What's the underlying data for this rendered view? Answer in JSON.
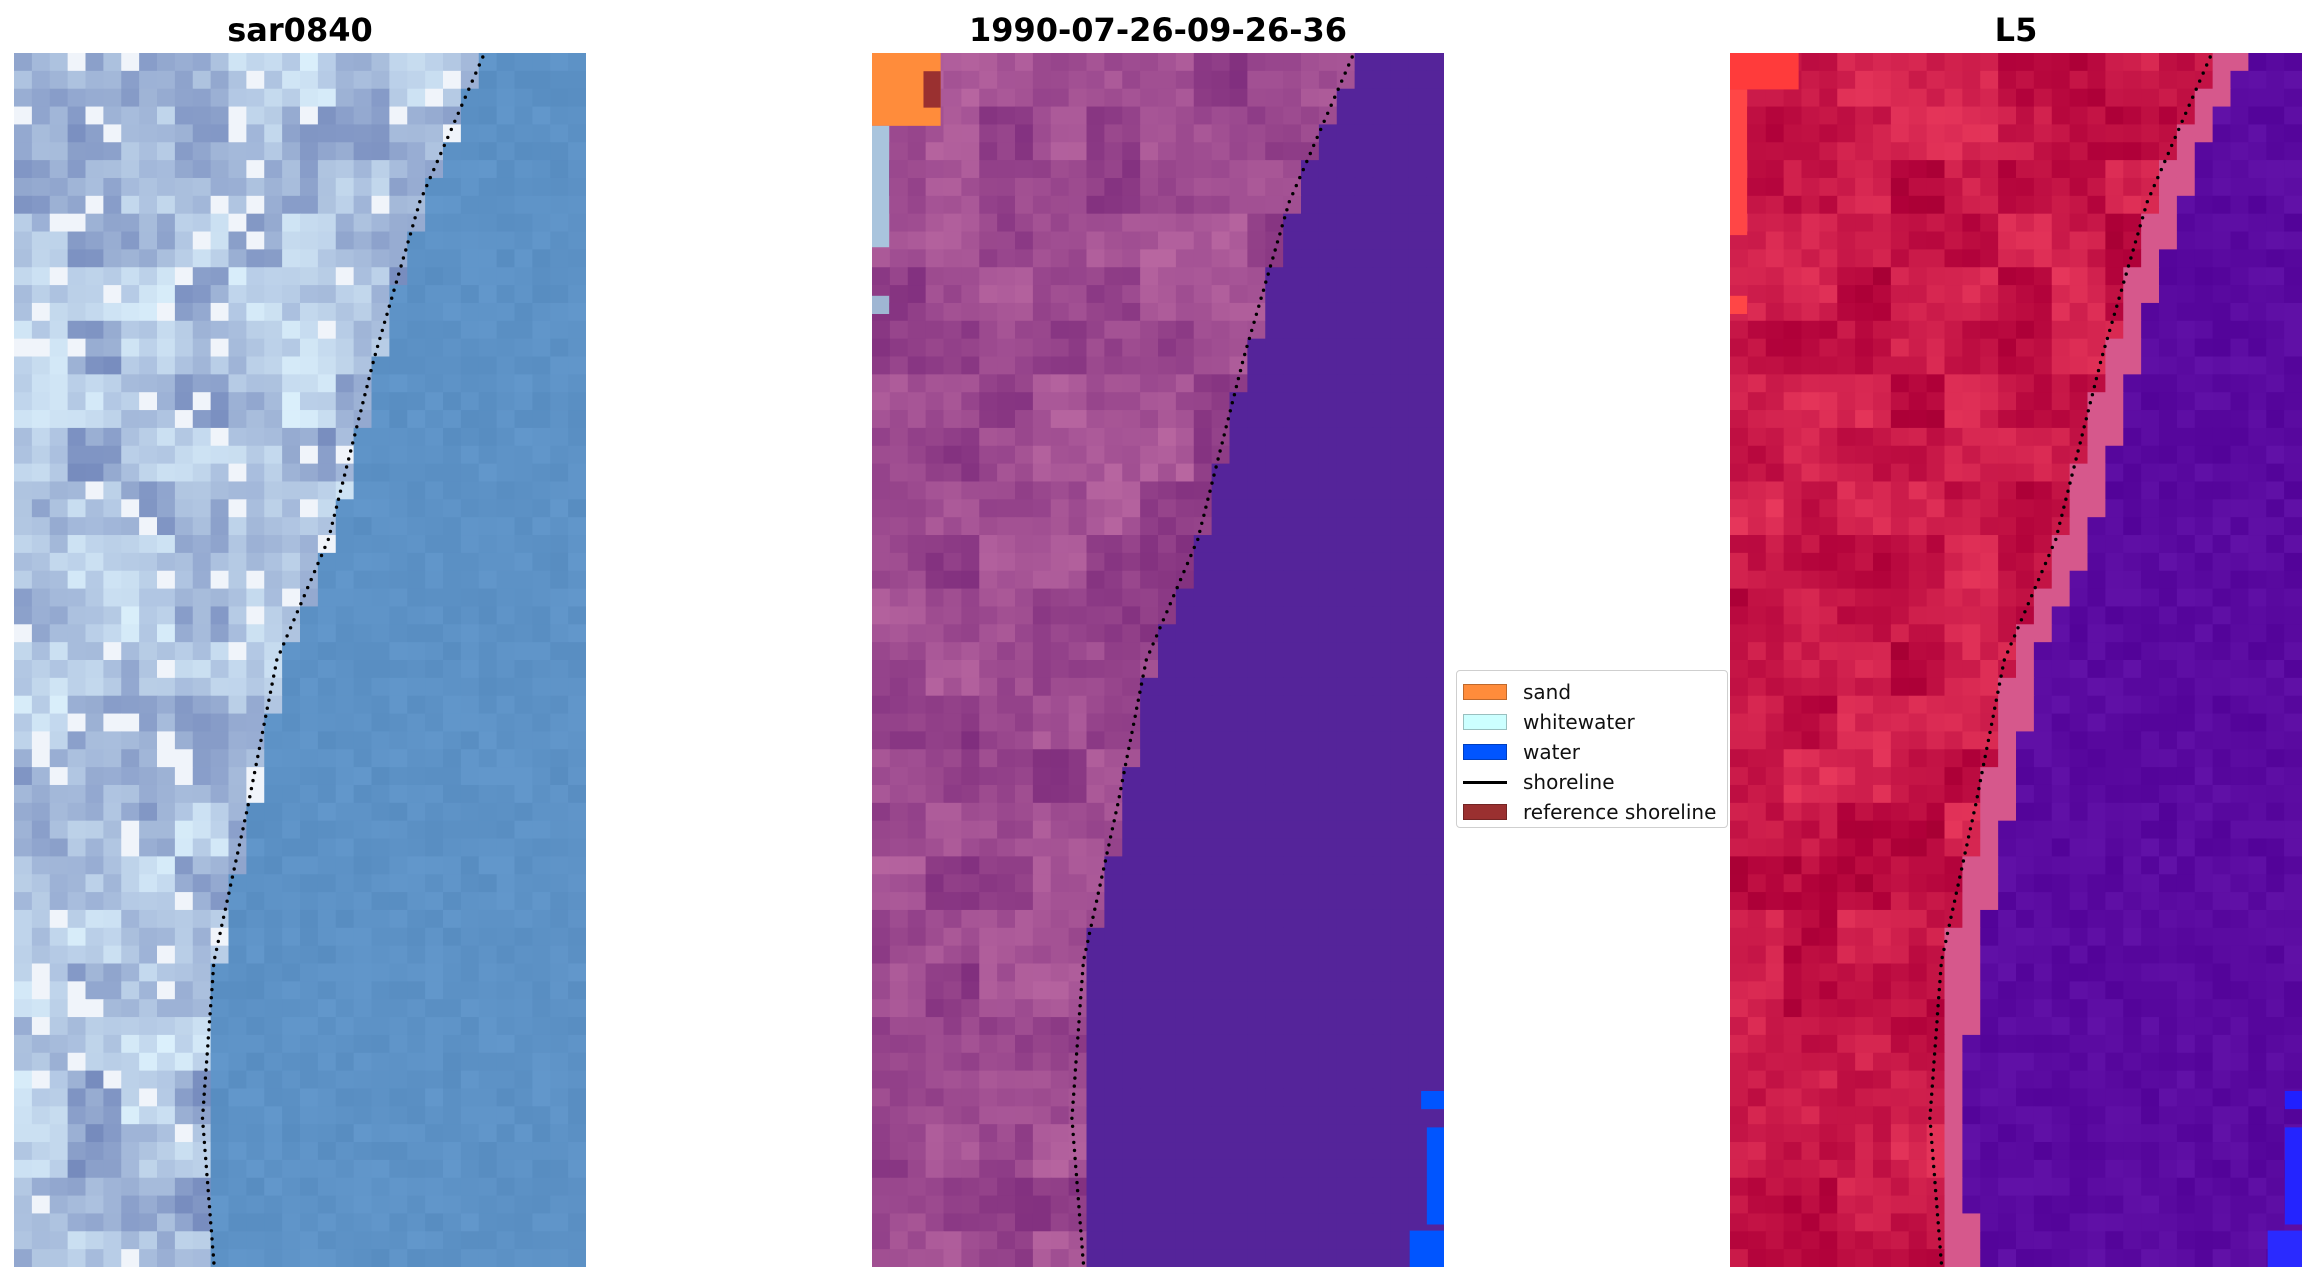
{
  "panels": [
    {
      "title": "sar0840",
      "view": "rgb"
    },
    {
      "title": "1990-07-26-09-26-36",
      "view": "classification"
    },
    {
      "title": "L5",
      "view": "false-color"
    }
  ],
  "legend": {
    "items": [
      {
        "label": "sand",
        "color": "#ff8c3b",
        "kind": "patch"
      },
      {
        "label": "whitewater",
        "color": "#ccffff",
        "kind": "patch"
      },
      {
        "label": "water",
        "color": "#0055ff",
        "kind": "patch"
      },
      {
        "label": "shoreline",
        "color": "#000000",
        "kind": "line"
      },
      {
        "label": "reference shoreline",
        "color": "#9a3030",
        "kind": "patch"
      }
    ]
  },
  "colors": {
    "sea_rgb": "#5d92c6",
    "land_rgb": "#a9bedd",
    "land_class": "#9c4a8f",
    "sea_class": "#55249a",
    "land_false": "#c81848",
    "sea_false": "#5a0aa0",
    "shoreline_dots": "#000000"
  }
}
